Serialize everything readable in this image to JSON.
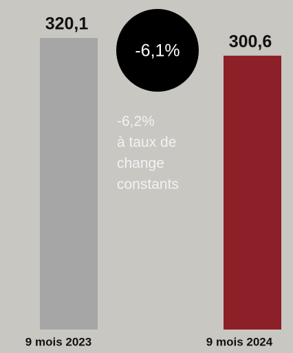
{
  "chart_data": {
    "type": "bar",
    "categories": [
      "9 mois 2023",
      "9 mois 2024"
    ],
    "values": [
      320.1,
      300.6
    ],
    "value_labels": [
      "320,1",
      "300,6"
    ],
    "colors": [
      "#a6a6a6",
      "#8c1f28"
    ],
    "annotations": {
      "badge": "-6,1%",
      "note": [
        "-6,2%",
        "à taux de",
        "change",
        "constants"
      ]
    }
  }
}
